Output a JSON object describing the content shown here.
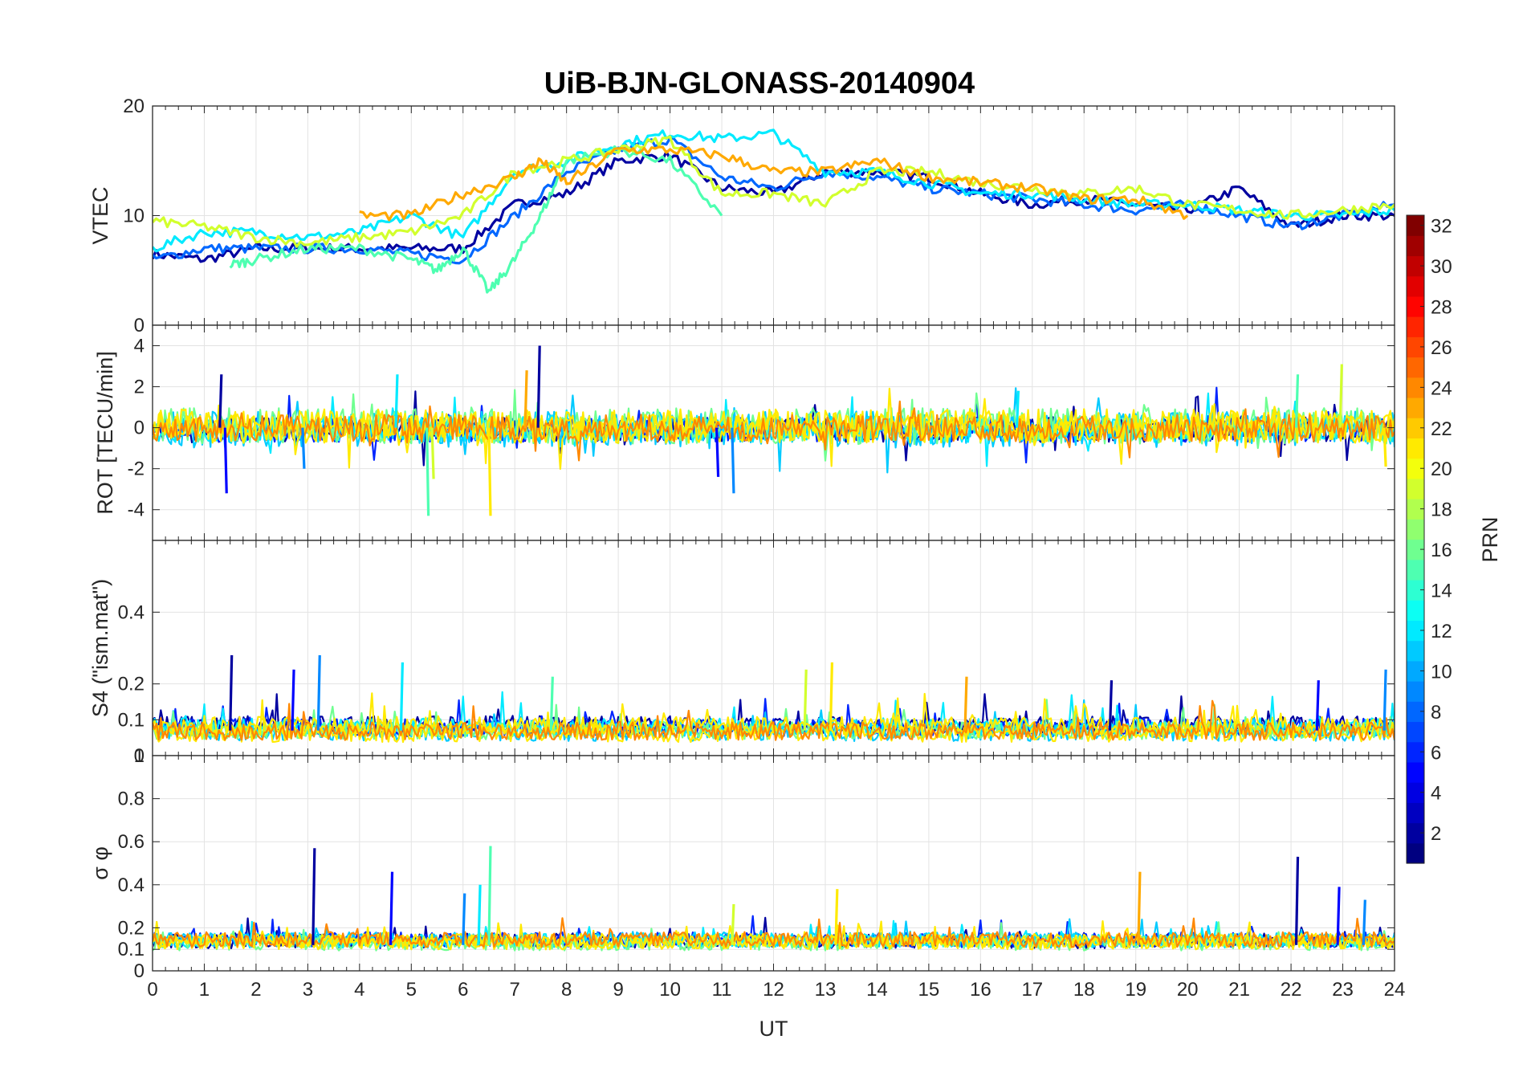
{
  "chart_data": {
    "type": "line",
    "title": "UiB-BJN-GLONASS-20140904",
    "xlabel": "UT",
    "xlim": [
      0,
      24
    ],
    "xticks": [
      "0",
      "1",
      "2",
      "3",
      "4",
      "5",
      "6",
      "7",
      "8",
      "9",
      "10",
      "11",
      "12",
      "13",
      "14",
      "15",
      "16",
      "17",
      "18",
      "19",
      "20",
      "21",
      "22",
      "23",
      "24"
    ],
    "colorbar": {
      "label": "PRN",
      "range": [
        1,
        32
      ],
      "colormap": "jet",
      "ticks": [
        "2",
        "4",
        "6",
        "8",
        "10",
        "12",
        "14",
        "16",
        "18",
        "20",
        "22",
        "24",
        "26",
        "28",
        "30",
        "32"
      ]
    },
    "panels": [
      {
        "ylabel": "VTEC",
        "ylim": [
          0,
          20
        ],
        "yticks": [
          "0",
          "10",
          "20"
        ],
        "series": [
          {
            "prn": 2,
            "x": [
              0,
              1,
              2,
              3,
              4,
              5,
              6,
              7,
              8,
              9,
              10,
              11,
              12,
              13,
              14,
              15,
              16,
              17,
              18,
              19,
              20,
              21,
              22,
              23,
              24
            ],
            "y": [
              6.5,
              6,
              7,
              7,
              7,
              7,
              7,
              11,
              12,
              15,
              15.5,
              12.5,
              12,
              14,
              14,
              13.5,
              12,
              11,
              11.5,
              11,
              10.5,
              12.5,
              9,
              10,
              10
            ]
          },
          {
            "prn": 8,
            "x": [
              0,
              1,
              2,
              3,
              4,
              5,
              6,
              7,
              8,
              9,
              10,
              11,
              12,
              13,
              14,
              15,
              16,
              17,
              18,
              19,
              20,
              21,
              22,
              23,
              24
            ],
            "y": [
              6,
              7,
              7,
              7,
              7,
              6.5,
              6,
              10,
              14,
              16,
              17,
              13.5,
              12.5,
              14,
              13.5,
              12.5,
              12,
              11.5,
              11,
              10.5,
              11,
              10,
              9,
              10,
              11
            ]
          },
          {
            "prn": 12,
            "x": [
              0,
              1,
              2,
              3,
              4,
              5,
              6,
              7,
              8,
              9,
              10,
              11,
              12,
              13,
              14,
              15,
              16,
              17,
              18,
              19,
              20,
              21,
              22,
              23,
              24
            ],
            "y": [
              7,
              8.5,
              8.5,
              8,
              8.5,
              10,
              8,
              14,
              15,
              16.5,
              17.5,
              17,
              17.5,
              14,
              14,
              13,
              12,
              12,
              11.5,
              11,
              11,
              10.5,
              10,
              10,
              10.5
            ]
          },
          {
            "prn": 15,
            "x": [
              1.5,
              2,
              3,
              4,
              5,
              5.5,
              6,
              6.5,
              7,
              7.5,
              8,
              9,
              10,
              11
            ],
            "y": [
              5.5,
              6,
              7,
              7,
              6,
              5,
              7,
              3,
              6,
              10,
              15,
              16,
              15,
              10
            ]
          },
          {
            "prn": 19,
            "x": [
              0,
              1,
              2,
              3,
              4,
              5,
              6,
              7,
              8,
              9,
              10,
              11,
              12,
              13,
              14,
              15,
              16,
              17,
              18,
              19,
              20,
              21,
              22,
              23,
              24
            ],
            "y": [
              9.5,
              9,
              8,
              7.5,
              8,
              8.5,
              10,
              14,
              15,
              16,
              17,
              12,
              12,
              11,
              14,
              14,
              13,
              12.5,
              12,
              12.5,
              11,
              10.5,
              10,
              10.5,
              11
            ]
          },
          {
            "prn": 23,
            "x": [
              4,
              5,
              6,
              7,
              7.5,
              8,
              9,
              10,
              11,
              12,
              13,
              14,
              15,
              16,
              17,
              18,
              19,
              20
            ],
            "y": [
              10,
              10,
              12,
              13.5,
              15,
              13,
              16,
              16,
              15.5,
              14,
              14,
              15,
              13.5,
              13,
              12.5,
              11.5,
              11.5,
              10
            ]
          }
        ]
      },
      {
        "ylabel": "ROT [TECU/min]",
        "ylim": [
          -5.5,
          5
        ],
        "yticks": [
          "-4",
          "-2",
          "0",
          "2",
          "4"
        ],
        "baseline": 0,
        "noise_band": [
          -0.8,
          0.8
        ],
        "spikes": [
          {
            "x": 1.3,
            "y": 2.6
          },
          {
            "x": 1.4,
            "y": -3.2
          },
          {
            "x": 2.9,
            "y": -2.0
          },
          {
            "x": 4.7,
            "y": 2.6
          },
          {
            "x": 5.3,
            "y": -4.3
          },
          {
            "x": 5.4,
            "y": -2.5
          },
          {
            "x": 6.5,
            "y": -4.3
          },
          {
            "x": 7.2,
            "y": 2.8
          },
          {
            "x": 7.45,
            "y": 4.0
          },
          {
            "x": 10.9,
            "y": -2.4
          },
          {
            "x": 11.2,
            "y": -3.2
          },
          {
            "x": 16.7,
            "y": 1.8
          },
          {
            "x": 22.1,
            "y": 2.6
          },
          {
            "x": 22.95,
            "y": 3.1
          },
          {
            "x": 23.8,
            "y": -1.9
          }
        ]
      },
      {
        "ylabel": "S4 (\"ism.mat\")",
        "ylim": [
          0,
          0.6
        ],
        "yticks": [
          "0",
          "0.1",
          "0.2",
          "0.4"
        ],
        "baseline": 0.07,
        "spikes": [
          {
            "x": 1.5,
            "y": 0.28
          },
          {
            "x": 2.7,
            "y": 0.24
          },
          {
            "x": 3.2,
            "y": 0.28
          },
          {
            "x": 4.8,
            "y": 0.26
          },
          {
            "x": 7.7,
            "y": 0.22
          },
          {
            "x": 12.6,
            "y": 0.24
          },
          {
            "x": 13.1,
            "y": 0.26
          },
          {
            "x": 15.7,
            "y": 0.22
          },
          {
            "x": 18.5,
            "y": 0.21
          },
          {
            "x": 22.5,
            "y": 0.21
          },
          {
            "x": 23.8,
            "y": 0.24
          }
        ]
      },
      {
        "ylabel": "σ φ",
        "ylim": [
          0,
          1
        ],
        "yticks": [
          "0",
          "0.1",
          "0.2",
          "0.4",
          "0.6",
          "0.8",
          "1"
        ],
        "baseline": 0.12,
        "spikes": [
          {
            "x": 3.1,
            "y": 0.57
          },
          {
            "x": 4.6,
            "y": 0.46
          },
          {
            "x": 6.0,
            "y": 0.36
          },
          {
            "x": 6.3,
            "y": 0.4
          },
          {
            "x": 6.5,
            "y": 0.58
          },
          {
            "x": 11.2,
            "y": 0.31
          },
          {
            "x": 13.2,
            "y": 0.38
          },
          {
            "x": 19.05,
            "y": 0.46
          },
          {
            "x": 22.1,
            "y": 0.53
          },
          {
            "x": 22.9,
            "y": 0.39
          },
          {
            "x": 23.4,
            "y": 0.33
          }
        ]
      }
    ]
  }
}
